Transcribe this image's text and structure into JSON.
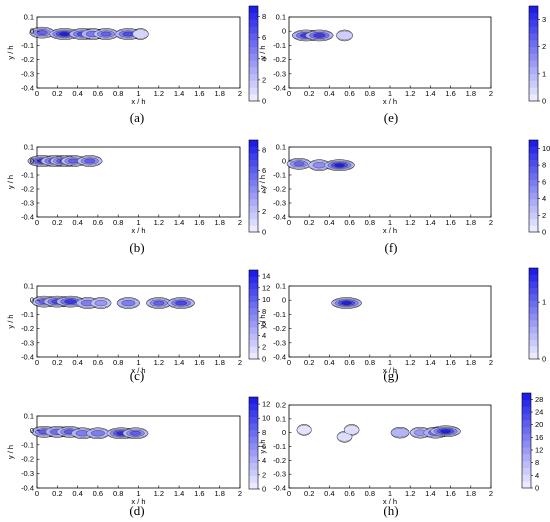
{
  "figure": {
    "axis_labels": {
      "x": "x / h",
      "y": "y / h"
    }
  },
  "chart_data": [
    {
      "label": "(a)",
      "type": "contour",
      "xlabel": "x / h",
      "ylabel": "y / h",
      "xlim": [
        0,
        2
      ],
      "ylim": [
        -0.4,
        0.1
      ],
      "xticks": [
        "0",
        "0.2",
        "0.4",
        "0.6",
        "0.8",
        "1",
        "1.2",
        "1.4",
        "1.6",
        "1.8",
        "2"
      ],
      "yticks": [
        "0.1",
        "0",
        "-0.1",
        "-0.2",
        "-0.3",
        "-0.4"
      ],
      "colorbar": {
        "ticks": [
          "8",
          "6",
          "4",
          "2",
          "0"
        ],
        "min": 0,
        "max": 9
      },
      "hotspots": [
        {
          "x": 0.05,
          "y": -0.01,
          "peak": 6
        },
        {
          "x": 0.27,
          "y": -0.02,
          "peak": 9
        },
        {
          "x": 0.45,
          "y": -0.02,
          "peak": 7
        },
        {
          "x": 0.55,
          "y": -0.02,
          "peak": 5
        },
        {
          "x": 0.68,
          "y": -0.02,
          "peak": 6
        },
        {
          "x": 0.9,
          "y": -0.02,
          "peak": 7
        },
        {
          "x": 1.02,
          "y": -0.02,
          "peak": 1
        }
      ]
    },
    {
      "label": "(b)",
      "type": "contour",
      "xlabel": "x / h",
      "ylabel": "y / h",
      "xlim": [
        0,
        2
      ],
      "ylim": [
        -0.4,
        0.1
      ],
      "xticks": [
        "0",
        "0.2",
        "0.4",
        "0.6",
        "0.8",
        "1",
        "1.2",
        "1.4",
        "1.6",
        "1.8",
        "2"
      ],
      "yticks": [
        "0.1",
        "0",
        "-0.1",
        "-0.2",
        "-0.3",
        "-0.4"
      ],
      "colorbar": {
        "ticks": [
          "8",
          "6",
          "4",
          "2",
          "0"
        ],
        "min": 0,
        "max": 9
      },
      "hotspots": [
        {
          "x": 0.05,
          "y": 0.0,
          "peak": 8
        },
        {
          "x": 0.17,
          "y": 0.0,
          "peak": 7
        },
        {
          "x": 0.27,
          "y": 0.0,
          "peak": 8
        },
        {
          "x": 0.36,
          "y": 0.0,
          "peak": 6
        },
        {
          "x": 0.52,
          "y": 0.0,
          "peak": 6
        }
      ]
    },
    {
      "label": "(c)",
      "type": "contour",
      "xlabel": "x / h",
      "ylabel": "y / h",
      "xlim": [
        0,
        2
      ],
      "ylim": [
        -0.4,
        0.1
      ],
      "xticks": [
        "0",
        "0.2",
        "0.4",
        "0.6",
        "0.8",
        "1",
        "1.2",
        "1.4",
        "1.6",
        "1.8",
        "2"
      ],
      "yticks": [
        "0.1",
        "0",
        "-0.1",
        "-0.2",
        "-0.3",
        "-0.4"
      ],
      "colorbar": {
        "ticks": [
          "14",
          "12",
          "10",
          "8",
          "6",
          "4",
          "2",
          "0"
        ],
        "min": 0,
        "max": 15
      },
      "hotspots": [
        {
          "x": 0.07,
          "y": -0.01,
          "peak": 10
        },
        {
          "x": 0.2,
          "y": -0.01,
          "peak": 12
        },
        {
          "x": 0.33,
          "y": -0.01,
          "peak": 13
        },
        {
          "x": 0.5,
          "y": -0.02,
          "peak": 8
        },
        {
          "x": 0.63,
          "y": -0.02,
          "peak": 6
        },
        {
          "x": 0.9,
          "y": -0.02,
          "peak": 8
        },
        {
          "x": 1.2,
          "y": -0.02,
          "peak": 10
        },
        {
          "x": 1.42,
          "y": -0.02,
          "peak": 12
        }
      ]
    },
    {
      "label": "(d)",
      "type": "contour",
      "xlabel": "x / h",
      "ylabel": "y / h",
      "xlim": [
        0,
        2
      ],
      "ylim": [
        -0.4,
        0.1
      ],
      "xticks": [
        "0",
        "0.2",
        "0.4",
        "0.6",
        "0.8",
        "1",
        "1.2",
        "1.4",
        "1.6",
        "1.8",
        "2"
      ],
      "yticks": [
        "0.1",
        "0",
        "-0.1",
        "-0.2",
        "-0.3",
        "-0.4"
      ],
      "colorbar": {
        "ticks": [
          "12",
          "10",
          "8",
          "6",
          "4",
          "2",
          "0"
        ],
        "min": 0,
        "max": 13
      },
      "hotspots": [
        {
          "x": 0.07,
          "y": -0.01,
          "peak": 9
        },
        {
          "x": 0.2,
          "y": -0.01,
          "peak": 8
        },
        {
          "x": 0.32,
          "y": -0.01,
          "peak": 9
        },
        {
          "x": 0.45,
          "y": -0.02,
          "peak": 7
        },
        {
          "x": 0.6,
          "y": -0.02,
          "peak": 7
        },
        {
          "x": 0.83,
          "y": -0.02,
          "peak": 12
        },
        {
          "x": 0.97,
          "y": -0.02,
          "peak": 9
        }
      ]
    },
    {
      "label": "(e)",
      "type": "contour",
      "xlabel": "x / h",
      "ylabel": "y / h",
      "xlim": [
        0,
        2
      ],
      "ylim": [
        -0.4,
        0.1
      ],
      "xticks": [
        "0",
        "0.2",
        "0.4",
        "0.6",
        "0.8",
        "1",
        "1.2",
        "1.4",
        "1.6",
        "1.8",
        "2"
      ],
      "yticks": [
        "0.1",
        "0",
        "-0.1",
        "-0.2",
        "-0.3",
        "-0.4"
      ],
      "colorbar": {
        "ticks": [
          "3",
          "2",
          "1",
          "0"
        ],
        "min": 0,
        "max": 3.5
      },
      "hotspots": [
        {
          "x": 0.17,
          "y": -0.03,
          "peak": 3
        },
        {
          "x": 0.3,
          "y": -0.03,
          "peak": 3
        },
        {
          "x": 0.55,
          "y": -0.03,
          "peak": 0.5
        }
      ]
    },
    {
      "label": "(f)",
      "type": "contour",
      "xlabel": "x / h",
      "ylabel": "y / h",
      "xlim": [
        0,
        2
      ],
      "ylim": [
        -0.4,
        0.1
      ],
      "xticks": [
        "0",
        "0.2",
        "0.4",
        "0.6",
        "0.8",
        "1",
        "1.2",
        "1.4",
        "1.6",
        "1.8",
        "2"
      ],
      "yticks": [
        "0.1",
        "0",
        "-0.1",
        "-0.2",
        "-0.3",
        "-0.4"
      ],
      "colorbar": {
        "ticks": [
          "10",
          "8",
          "6",
          "4",
          "2",
          "0"
        ],
        "min": 0,
        "max": 11
      },
      "hotspots": [
        {
          "x": 0.1,
          "y": -0.02,
          "peak": 7
        },
        {
          "x": 0.3,
          "y": -0.03,
          "peak": 5
        },
        {
          "x": 0.5,
          "y": -0.03,
          "peak": 11
        }
      ]
    },
    {
      "label": "(g)",
      "type": "contour",
      "xlabel": "x / h",
      "ylabel": "y / h",
      "xlim": [
        0,
        2
      ],
      "ylim": [
        -0.4,
        0.1
      ],
      "xticks": [
        "0",
        "0.2",
        "0.4",
        "0.6",
        "0.8",
        "1",
        "1.2",
        "1.4",
        "1.6",
        "1.8",
        "2"
      ],
      "yticks": [
        "0.1",
        "0",
        "-0.1",
        "-0.2",
        "-0.3",
        "-0.4"
      ],
      "colorbar": {
        "ticks": [
          "1",
          "0"
        ],
        "min": 0,
        "max": 1.6
      },
      "hotspots": [
        {
          "x": 0.57,
          "y": -0.02,
          "peak": 1.6
        }
      ]
    },
    {
      "label": "(h)",
      "type": "contour",
      "xlabel": "x / h",
      "ylabel": "y / h",
      "xlim": [
        0,
        2
      ],
      "ylim": [
        -0.4,
        0.2
      ],
      "xticks": [
        "0",
        "0.2",
        "0.4",
        "0.6",
        "0.8",
        "1",
        "1.2",
        "1.4",
        "1.6",
        "1.8",
        "2"
      ],
      "yticks": [
        "0.2",
        "0.1",
        "0",
        "-0.1",
        "-0.2",
        "-0.3",
        "-0.4"
      ],
      "colorbar": {
        "ticks": [
          "28",
          "24",
          "20",
          "16",
          "12",
          "8",
          "4",
          "0"
        ],
        "min": 0,
        "max": 30
      },
      "hotspots": [
        {
          "x": 0.15,
          "y": 0.02,
          "peak": 1
        },
        {
          "x": 0.55,
          "y": -0.03,
          "peak": 2
        },
        {
          "x": 0.62,
          "y": 0.02,
          "peak": 2
        },
        {
          "x": 1.1,
          "y": 0.0,
          "peak": 8
        },
        {
          "x": 1.3,
          "y": 0.0,
          "peak": 12
        },
        {
          "x": 1.45,
          "y": 0.0,
          "peak": 18
        },
        {
          "x": 1.55,
          "y": 0.01,
          "peak": 30
        }
      ]
    }
  ]
}
